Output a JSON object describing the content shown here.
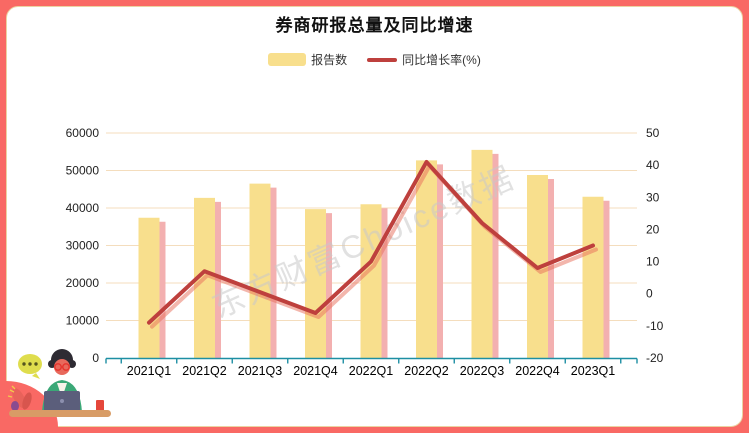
{
  "title": "券商研报总量及同比增速",
  "legend": {
    "items": [
      {
        "label": "报告数",
        "swatch": "bar",
        "color": "#F8DF8D"
      },
      {
        "label": "同比增长率(%)",
        "swatch": "line",
        "color": "#BE403D"
      }
    ]
  },
  "watermark": "东方财富Choice数据",
  "colors": {
    "frame": "#F96964",
    "inner_border": "#EBD3A2",
    "grid_line": "#F4DDBD",
    "x_axis": "#1D8FA3",
    "bar": "#F8DF8D",
    "bar_shadow": "#F3B0B0",
    "line": "#BE403D",
    "line_shadow": "rgba(231,110,90,0.5)",
    "watermark_gray": "#c9c9c9"
  },
  "chart_data": {
    "type": "combo-bar-line (dual y-axis)",
    "categories": [
      "2021Q1",
      "2021Q2",
      "2021Q3",
      "2021Q4",
      "2022Q1",
      "2022Q2",
      "2022Q3",
      "2022Q4",
      "2023Q1"
    ],
    "series": [
      {
        "name": "报告数",
        "type": "bar",
        "axis": "left",
        "values": [
          37400,
          42700,
          46500,
          39700,
          41000,
          52700,
          55500,
          48800,
          43000
        ]
      },
      {
        "name": "同比增长率(%)",
        "type": "line",
        "axis": "right",
        "values": [
          -9,
          7,
          0.5,
          -6,
          10,
          41,
          22,
          8,
          15
        ]
      }
    ],
    "title": "券商研报总量及同比增速",
    "xlabel": "",
    "ylabel_left": "",
    "ylabel_right": "",
    "left_axis": {
      "min": 0,
      "max": 60000,
      "ticks": [
        0,
        10000,
        20000,
        30000,
        40000,
        50000,
        60000
      ]
    },
    "right_axis": {
      "min": -20,
      "max": 50,
      "ticks": [
        -20,
        -10,
        0,
        10,
        20,
        30,
        40,
        50
      ]
    },
    "grid": "horizontal gridlines only",
    "legend_position": "top-center"
  }
}
